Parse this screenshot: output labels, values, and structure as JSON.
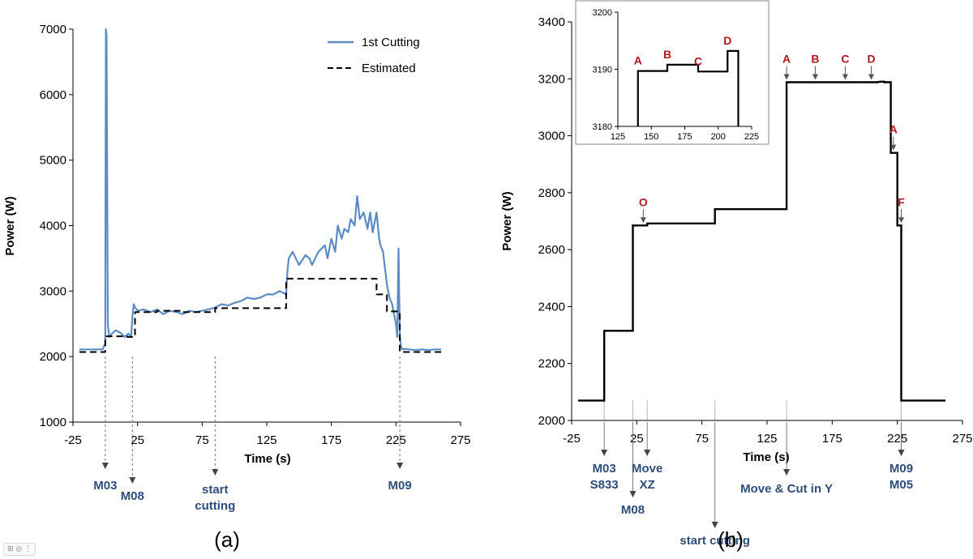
{
  "chart_data": [
    {
      "type": "line",
      "panel_label": "(a)",
      "xlabel": "Time (s)",
      "ylabel": "Power (W)",
      "xlim": [
        -25,
        275
      ],
      "ylim": [
        1000,
        7000
      ],
      "xticks": [
        "-25",
        "25",
        "75",
        "125",
        "175",
        "225",
        "275"
      ],
      "yticks": [
        "1000",
        "2000",
        "3000",
        "4000",
        "5000",
        "6000",
        "7000"
      ],
      "grid": false,
      "legend_position": "top-right",
      "series": [
        {
          "name": "1st Cutting",
          "color": "#5b8cc4",
          "style": "solid",
          "x": [
            -20,
            -15,
            -10,
            -5,
            -2,
            0,
            0.5,
            1,
            2,
            3,
            5,
            8,
            10,
            12,
            15,
            18,
            20,
            21,
            22,
            23,
            25,
            30,
            35,
            40,
            45,
            50,
            55,
            60,
            65,
            70,
            75,
            80,
            85,
            90,
            95,
            100,
            105,
            110,
            115,
            120,
            125,
            130,
            135,
            140,
            141,
            142,
            145,
            150,
            155,
            158,
            160,
            165,
            170,
            172,
            175,
            178,
            180,
            183,
            185,
            188,
            190,
            193,
            195,
            197,
            200,
            203,
            205,
            207,
            210,
            212,
            213,
            215,
            218,
            220,
            222,
            225,
            226,
            227,
            228,
            229,
            230,
            232,
            235,
            240,
            245,
            250,
            255,
            260
          ],
          "y": [
            2110,
            2110,
            2110,
            2110,
            2110,
            2200,
            7000,
            6900,
            2500,
            2300,
            2350,
            2400,
            2380,
            2360,
            2300,
            2350,
            2300,
            2600,
            2800,
            2750,
            2700,
            2720,
            2680,
            2720,
            2650,
            2700,
            2680,
            2650,
            2700,
            2680,
            2700,
            2720,
            2750,
            2800,
            2780,
            2820,
            2850,
            2900,
            2880,
            2900,
            2950,
            2950,
            3000,
            2950,
            3300,
            3500,
            3600,
            3400,
            3550,
            3500,
            3400,
            3600,
            3700,
            3500,
            3800,
            3600,
            4000,
            3800,
            3950,
            3900,
            4100,
            4000,
            4450,
            4100,
            4200,
            3950,
            4200,
            3900,
            4200,
            3800,
            3700,
            3600,
            3100,
            2900,
            2800,
            2500,
            2300,
            3650,
            2300,
            2150,
            2110,
            2120,
            2110,
            2100,
            2110,
            2100,
            2110,
            2110
          ]
        },
        {
          "name": "Estimated",
          "color": "#000000",
          "style": "dashed",
          "x": [
            -20,
            0,
            0,
            17,
            17,
            23,
            23,
            40,
            40,
            60,
            60,
            85,
            85,
            140,
            140,
            210,
            210,
            218,
            218,
            226,
            226,
            228,
            228,
            260
          ],
          "y": [
            2070,
            2070,
            2310,
            2310,
            2300,
            2300,
            2680,
            2680,
            2700,
            2700,
            2680,
            2680,
            2740,
            2740,
            3190,
            3190,
            2950,
            2950,
            2690,
            2690,
            2680,
            2680,
            2070,
            2070
          ]
        }
      ],
      "events": [
        {
          "x": 0,
          "lines": [
            "M03"
          ]
        },
        {
          "x": 21,
          "lines": [
            "M08"
          ]
        },
        {
          "x": 85,
          "lines": [
            "start",
            "cutting"
          ]
        },
        {
          "x": 228,
          "lines": [
            "M09"
          ]
        }
      ]
    },
    {
      "type": "line",
      "panel_label": "(b)",
      "xlabel": "Time (s)",
      "ylabel": "Power (W)",
      "xlim": [
        -25,
        275
      ],
      "ylim": [
        2000,
        3400
      ],
      "xticks": [
        "-25",
        "25",
        "75",
        "125",
        "175",
        "225",
        "275"
      ],
      "yticks": [
        "2000",
        "2200",
        "2400",
        "2600",
        "2800",
        "3000",
        "3200",
        "3400"
      ],
      "grid": false,
      "series": [
        {
          "color": "#000000",
          "style": "solid",
          "x": [
            -20,
            0,
            0,
            22,
            22,
            33,
            33,
            85,
            85,
            140,
            140,
            210,
            210,
            212,
            215,
            215,
            220,
            220,
            225,
            225,
            226,
            226,
            228,
            228,
            262
          ],
          "y": [
            2070,
            2070,
            2315,
            2315,
            2685,
            2685,
            2692,
            2692,
            2742,
            2742,
            3188,
            3188,
            3189,
            3190,
            3190,
            3188,
            3188,
            2940,
            2940,
            2685,
            2685,
            2685,
            2685,
            2070,
            2070
          ]
        }
      ],
      "point_labels": [
        {
          "text": "O",
          "x": 30,
          "y": 2685
        },
        {
          "text": "A",
          "x": 140,
          "y": 3188
        },
        {
          "text": "B",
          "x": 162,
          "y": 3188
        },
        {
          "text": "C",
          "x": 185,
          "y": 3188
        },
        {
          "text": "D",
          "x": 205,
          "y": 3188
        },
        {
          "text": "A",
          "x": 222,
          "y": 2940
        },
        {
          "text": "F",
          "x": 228,
          "y": 2685
        }
      ],
      "events": [
        {
          "x": 0,
          "lines": [
            "M03",
            "S833"
          ]
        },
        {
          "x": 22,
          "lines": [
            "M08"
          ]
        },
        {
          "x": 33,
          "lines": [
            "Move",
            "XZ"
          ]
        },
        {
          "x": 85,
          "lines": [
            "start cutting"
          ]
        },
        {
          "x": 140,
          "lines": [
            "Move & Cut in Y"
          ]
        },
        {
          "x": 228,
          "lines": [
            "M09",
            "M05"
          ]
        }
      ],
      "inset": {
        "xlim": [
          125,
          225
        ],
        "ylim": [
          3180,
          3200
        ],
        "xticks": [
          "125",
          "150",
          "175",
          "200",
          "225"
        ],
        "yticks": [
          "3180",
          "3190",
          "3200"
        ],
        "series": [
          {
            "color": "#000000",
            "x": [
              140,
              140,
              162,
              162,
              185,
              185,
              207,
              207,
              215,
              215
            ],
            "y": [
              3180,
              3189.7,
              3189.7,
              3190.8,
              3190.8,
              3189.6,
              3189.6,
              3193.2,
              3193.2,
              3180
            ]
          }
        ],
        "point_labels": [
          {
            "text": "A",
            "x": 140,
            "y": 3189.7
          },
          {
            "text": "B",
            "x": 162,
            "y": 3190.8
          },
          {
            "text": "C",
            "x": 185,
            "y": 3189.6
          },
          {
            "text": "D",
            "x": 207,
            "y": 3193.2
          }
        ]
      }
    }
  ]
}
